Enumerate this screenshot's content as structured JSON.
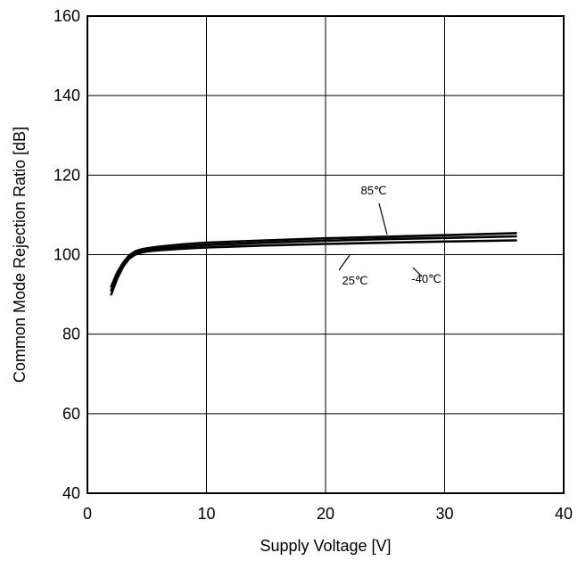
{
  "chart_data": {
    "type": "line",
    "title": "",
    "xlabel": "Supply Voltage [V]",
    "ylabel": "Common Mode Rejection Ratio [dB]",
    "xlim": [
      0,
      40
    ],
    "ylim": [
      40,
      160
    ],
    "xticks": [
      "0",
      "10",
      "20",
      "30",
      "40"
    ],
    "yticks": [
      "40",
      "60",
      "80",
      "100",
      "120",
      "140",
      "160"
    ],
    "grid": true,
    "legend": "none",
    "series": [
      {
        "name": "85℃",
        "x": [
          2,
          2.5,
          3,
          3.5,
          4,
          4.5,
          5,
          6,
          8,
          10,
          15,
          20,
          25,
          30,
          36
        ],
        "y": [
          92.0,
          95.5,
          98.0,
          99.8,
          100.8,
          101.3,
          101.6,
          102.0,
          102.6,
          103.0,
          103.6,
          104.1,
          104.5,
          104.9,
          105.4
        ]
      },
      {
        "name": "25℃",
        "x": [
          2,
          2.5,
          3,
          3.5,
          4,
          4.5,
          5,
          6,
          8,
          10,
          15,
          20,
          25,
          30,
          36
        ],
        "y": [
          91.0,
          94.8,
          97.5,
          99.3,
          100.3,
          100.8,
          101.1,
          101.5,
          102.0,
          102.4,
          103.0,
          103.5,
          103.9,
          104.2,
          104.6
        ]
      },
      {
        "name": "-40℃",
        "x": [
          2,
          2.5,
          3,
          3.5,
          4,
          4.5,
          5,
          6,
          8,
          10,
          15,
          20,
          25,
          30,
          36
        ],
        "y": [
          90.0,
          94.0,
          97.0,
          99.0,
          100.0,
          100.5,
          100.8,
          101.1,
          101.5,
          101.8,
          102.3,
          102.7,
          103.0,
          103.3,
          103.6
        ]
      }
    ],
    "annotations": [
      {
        "text": "85℃",
        "series": "85℃"
      },
      {
        "text": "25℃",
        "series": "25℃"
      },
      {
        "text": "-40℃",
        "series": "-40℃"
      }
    ]
  }
}
